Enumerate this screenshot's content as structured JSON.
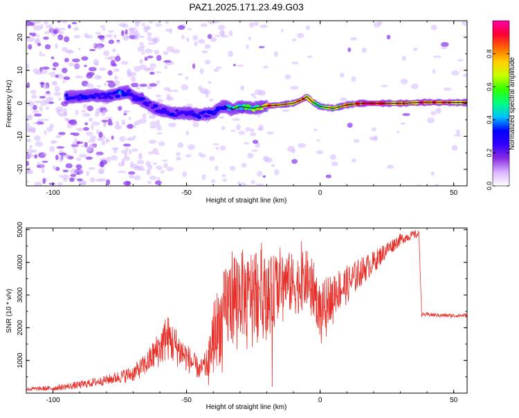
{
  "title": "PAZ1.2025.171.23.49.G03",
  "colors": {
    "snr_line": "#e8302a",
    "frequency_trace": "#000000",
    "colormap": [
      "#ffffff",
      "#d9b3ff",
      "#8a2be2",
      "#3300ff",
      "#0000ff",
      "#00c0ff",
      "#00ff80",
      "#30ff00",
      "#c8ff00",
      "#ffd000",
      "#ff6a00",
      "#ff0033",
      "#ff00aa"
    ]
  },
  "chart_data": [
    {
      "type": "heatmap",
      "name": "spectrogram",
      "xlabel": "Height of straight line (km)",
      "ylabel": "Frequency (Hz)",
      "xlim": [
        -110,
        55
      ],
      "ylim": [
        -25,
        25
      ],
      "xticks": [
        -100,
        -50,
        0,
        50
      ],
      "yticks": [
        -20,
        -10,
        0,
        10,
        20
      ],
      "colorbar": {
        "label": "Normalized spectral amplitude",
        "range": [
          0,
          1
        ],
        "ticks": [
          0.0,
          0.2,
          0.4,
          0.6,
          0.8
        ]
      },
      "dominant_frequency_track": {
        "x": [
          -90,
          -85,
          -80,
          -75,
          -72,
          -70,
          -67,
          -63,
          -60,
          -55,
          -50,
          -45,
          -40,
          -37,
          -35,
          -33,
          -30,
          -25,
          -20,
          -15,
          -10,
          -7,
          -5,
          -3,
          0,
          5,
          10,
          15,
          20,
          30,
          40,
          50,
          55
        ],
        "y": [
          2,
          2.5,
          2,
          3,
          3.5,
          2,
          1,
          -1,
          -2,
          -3,
          -3,
          -3.5,
          -3,
          -1,
          -1,
          -2,
          -1,
          -1.5,
          -0.8,
          -0.5,
          0,
          1,
          2,
          0.5,
          -1,
          -1.5,
          -0.5,
          0,
          0,
          0,
          0.3,
          0.2,
          0.2
        ],
        "amplitude": [
          0.3,
          0.35,
          0.25,
          0.35,
          0.3,
          0.25,
          0.3,
          0.25,
          0.3,
          0.3,
          0.25,
          0.3,
          0.3,
          0.3,
          0.35,
          0.45,
          0.5,
          0.6,
          0.8,
          0.85,
          0.8,
          0.75,
          0.85,
          0.65,
          0.6,
          0.75,
          0.8,
          0.85,
          0.9,
          0.85,
          0.9,
          0.85,
          0.8
        ]
      }
    },
    {
      "type": "line",
      "name": "snr",
      "xlabel": "Height of straight line (km)",
      "ylabel": "SNR (10 * v/v)",
      "xlim": [
        -110,
        55
      ],
      "ylim": [
        0,
        5050
      ],
      "xticks": [
        -100,
        -50,
        0,
        50
      ],
      "yticks": [
        1000,
        2000,
        3000,
        4000,
        5000
      ],
      "envelope": {
        "x": [
          -110,
          -100,
          -90,
          -80,
          -70,
          -65,
          -60,
          -57,
          -55,
          -50,
          -45,
          -42,
          -40,
          -37,
          -35,
          -33,
          -30,
          -27,
          -25,
          -22,
          -20,
          -18,
          -15,
          -12,
          -10,
          -7,
          -5,
          -2,
          0,
          5,
          10,
          15,
          20,
          25,
          30,
          35,
          37,
          38,
          40,
          45,
          50,
          55
        ],
        "y": [
          120,
          150,
          250,
          400,
          600,
          900,
          1400,
          1700,
          1500,
          1100,
          700,
          900,
          1800,
          2200,
          2600,
          3000,
          3100,
          2900,
          3300,
          3200,
          3000,
          3100,
          3500,
          3400,
          3300,
          3400,
          3500,
          3100,
          2500,
          3100,
          3300,
          3700,
          4000,
          4400,
          4700,
          4850,
          4850,
          2400,
          2400,
          2380,
          2370,
          2380
        ],
        "spread": [
          60,
          80,
          120,
          150,
          250,
          350,
          600,
          700,
          650,
          450,
          300,
          500,
          1100,
          1300,
          1400,
          1500,
          1400,
          1300,
          1300,
          1200,
          1100,
          1100,
          1000,
          950,
          950,
          900,
          900,
          850,
          800,
          700,
          600,
          450,
          350,
          250,
          180,
          120,
          120,
          60,
          60,
          60,
          60,
          60
        ]
      },
      "peaks": [
        {
          "x": -58,
          "y": 2250
        },
        {
          "x": -22,
          "y": 4600
        },
        {
          "x": -7,
          "y": 4650
        },
        {
          "x": -18,
          "y": 200
        }
      ]
    }
  ]
}
